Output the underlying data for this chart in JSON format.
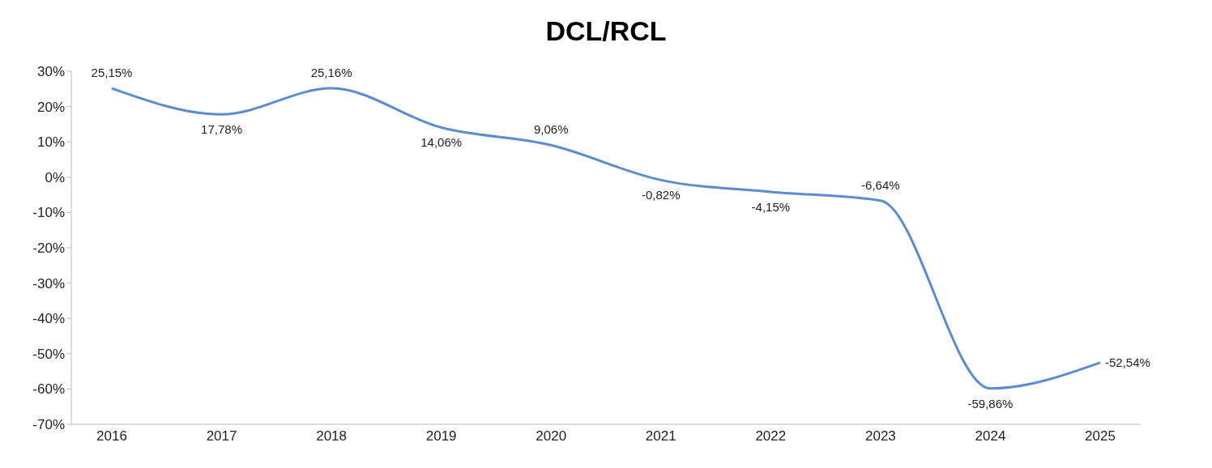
{
  "chart_data": {
    "type": "line",
    "title": "DCL/RCL",
    "categories": [
      "2016",
      "2017",
      "2018",
      "2019",
      "2020",
      "2021",
      "2022",
      "2023",
      "2024",
      "2025"
    ],
    "series": [
      {
        "color": "#5b8bd0",
        "values": [
          25.15,
          17.78,
          25.16,
          14.06,
          9.06,
          -0.82,
          -4.15,
          -6.64,
          -59.86,
          -52.54
        ],
        "value_labels": [
          "25,15%",
          "17,78%",
          "25,16%",
          "14,06%",
          "9,06%",
          "-0,82%",
          "-4,15%",
          "-6,64%",
          "-59,86%",
          "-52,54%"
        ]
      }
    ],
    "ylim": [
      -70,
      30
    ],
    "yticks": [
      {
        "value": -70,
        "label": "-70%"
      },
      {
        "value": -60,
        "label": "-60%"
      },
      {
        "value": -50,
        "label": "-50%"
      },
      {
        "value": -40,
        "label": "-40%"
      },
      {
        "value": -30,
        "label": "-30%"
      },
      {
        "value": -20,
        "label": "-20%"
      },
      {
        "value": -10,
        "label": "-10%"
      },
      {
        "value": 0,
        "label": "0%"
      },
      {
        "value": 10,
        "label": "10%"
      },
      {
        "value": 20,
        "label": "20%"
      },
      {
        "value": 30,
        "label": "30%"
      }
    ],
    "grid": false,
    "legend": false,
    "marker": "none",
    "line_style": "solid"
  }
}
